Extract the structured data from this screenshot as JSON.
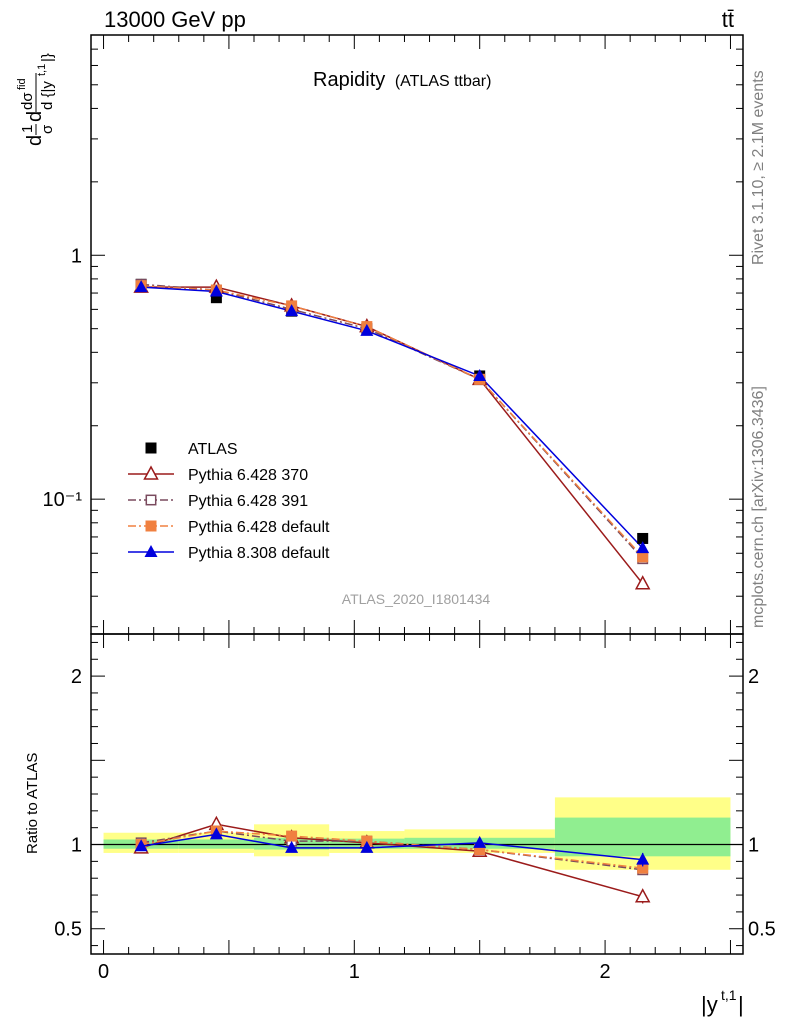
{
  "header": {
    "left": "13000 GeV pp",
    "right": "tt̄"
  },
  "side": {
    "rivet": "Rivet 3.1.10, ≥ 2.1M events",
    "mcplots": "mcplots.cern.ch [arXiv:1306.3436]"
  },
  "chart_data": [
    {
      "type": "line",
      "title": "Rapidity",
      "subtitle": "(ATLAS ttbar)",
      "watermark": "ATLAS_2020_I1801434",
      "ylabel": "d 1/σ dσ^{fid} / d {|y^{t,1}|}",
      "yscale": "log",
      "ylim": [
        0.028,
        8.0
      ],
      "yticks": [
        {
          "value": 1,
          "label": "1"
        },
        {
          "value": 0.1,
          "label": "10⁻¹"
        }
      ],
      "xlim": [
        -0.05,
        2.55
      ],
      "x": [
        0.15,
        0.45,
        0.75,
        1.05,
        1.5,
        2.15
      ],
      "legend_position": "bottom-left",
      "series": [
        {
          "name": "ATLAS",
          "color": "#000000",
          "marker": "square-filled",
          "line": "none",
          "values": [
            0.76,
            0.67,
            0.59,
            0.5,
            0.32,
            0.069
          ]
        },
        {
          "name": "Pythia 6.428 370",
          "color": "#9b1b1b",
          "marker": "triangle-open",
          "line": "solid",
          "values": [
            0.74,
            0.74,
            0.62,
            0.51,
            0.31,
            0.045
          ]
        },
        {
          "name": "Pythia 6.428 391",
          "color": "#7a4a5e",
          "marker": "square-open",
          "line": "dashdot",
          "values": [
            0.76,
            0.72,
            0.6,
            0.5,
            0.31,
            0.057
          ]
        },
        {
          "name": "Pythia 6.428 default",
          "color": "#f08040",
          "marker": "square-filled",
          "line": "dashdot",
          "values": [
            0.75,
            0.72,
            0.62,
            0.51,
            0.31,
            0.058
          ]
        },
        {
          "name": "Pythia 8.308 default",
          "color": "#0000dd",
          "marker": "triangle-filled",
          "line": "solid",
          "values": [
            0.74,
            0.71,
            0.59,
            0.49,
            0.32,
            0.063
          ]
        }
      ]
    },
    {
      "type": "line",
      "ylabel": "Ratio to ATLAS",
      "xlabel": "|y^{t,1}|",
      "ylim": [
        0.35,
        2.25
      ],
      "yticks": [
        {
          "value": 0.5,
          "label": "0.5"
        },
        {
          "value": 1,
          "label": "1"
        },
        {
          "value": 2,
          "label": "2"
        }
      ],
      "xlim": [
        -0.05,
        2.55
      ],
      "xticks": [
        {
          "value": 0,
          "label": "0"
        },
        {
          "value": 1,
          "label": "1"
        },
        {
          "value": 2,
          "label": "2"
        }
      ],
      "reference_line": 1,
      "bins": [
        {
          "x0": 0.0,
          "x1": 0.3,
          "inner": [
            0.975,
            1.03
          ],
          "outer": [
            0.95,
            1.07
          ]
        },
        {
          "x0": 0.3,
          "x1": 0.6,
          "inner": [
            0.975,
            1.03
          ],
          "outer": [
            0.95,
            1.07
          ]
        },
        {
          "x0": 0.6,
          "x1": 0.9,
          "inner": [
            0.97,
            1.04
          ],
          "outer": [
            0.93,
            1.12
          ]
        },
        {
          "x0": 0.9,
          "x1": 1.2,
          "inner": [
            0.975,
            1.035
          ],
          "outer": [
            0.95,
            1.08
          ]
        },
        {
          "x0": 1.2,
          "x1": 1.8,
          "inner": [
            0.975,
            1.04
          ],
          "outer": [
            0.95,
            1.09
          ]
        },
        {
          "x0": 1.8,
          "x1": 2.5,
          "inner": [
            0.93,
            1.16
          ],
          "outer": [
            0.85,
            1.28
          ]
        }
      ],
      "x": [
        0.15,
        0.45,
        0.75,
        1.05,
        1.5,
        2.15
      ],
      "series": [
        {
          "name": "Pythia 6.428 370",
          "values": [
            0.98,
            1.12,
            1.04,
            1.01,
            0.96,
            0.69
          ],
          "err": [
            0.02,
            0.02,
            0.02,
            0.02,
            0.02,
            0.04
          ]
        },
        {
          "name": "Pythia 6.428 391",
          "values": [
            1.01,
            1.08,
            1.02,
            1.02,
            0.97,
            0.85
          ],
          "err": [
            0.02,
            0.02,
            0.02,
            0.02,
            0.02,
            0.03
          ]
        },
        {
          "name": "Pythia 6.428 default",
          "values": [
            1.0,
            1.08,
            1.05,
            1.02,
            0.97,
            0.86
          ],
          "err": [
            0.02,
            0.02,
            0.02,
            0.02,
            0.02,
            0.03
          ]
        },
        {
          "name": "Pythia 8.308 default",
          "values": [
            0.99,
            1.06,
            0.98,
            0.98,
            1.01,
            0.91
          ],
          "err": [
            0.02,
            0.02,
            0.02,
            0.02,
            0.02,
            0.04
          ]
        }
      ]
    }
  ]
}
